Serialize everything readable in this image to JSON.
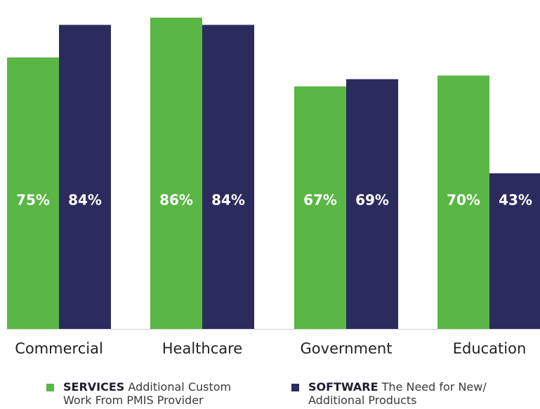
{
  "chart_data": {
    "type": "bar",
    "categories": [
      "Commercial",
      "Healthcare",
      "Government",
      "Education"
    ],
    "series": [
      {
        "name": "SERVICES",
        "description": "Additional Custom Work From PMIS Provider",
        "color": "#5ab645",
        "values": [
          75,
          86,
          67,
          70
        ],
        "labels": [
          "75%",
          "86%",
          "67%",
          "70%"
        ]
      },
      {
        "name": "SOFTWARE",
        "description": "The Need for New/ Additional Products",
        "color": "#2c2b5e",
        "values": [
          84,
          84,
          69,
          43
        ],
        "labels": [
          "84%",
          "84%",
          "69%",
          "43%"
        ]
      }
    ],
    "ylim": [
      0,
      88
    ],
    "grid": false,
    "legend_position": "bottom"
  },
  "legend": {
    "items": [
      {
        "bold": "SERVICES",
        "line1": "Additional Custom",
        "line2": "Work From PMIS Provider",
        "color": "#5ab645"
      },
      {
        "bold": "SOFTWARE",
        "line1": "The Need for New/",
        "line2": "Additional Products",
        "color": "#2c2b5e"
      }
    ]
  },
  "colors": {
    "axis": "#cfcfcf",
    "category_text": "#222222",
    "bar_label_text": "#ffffff"
  }
}
